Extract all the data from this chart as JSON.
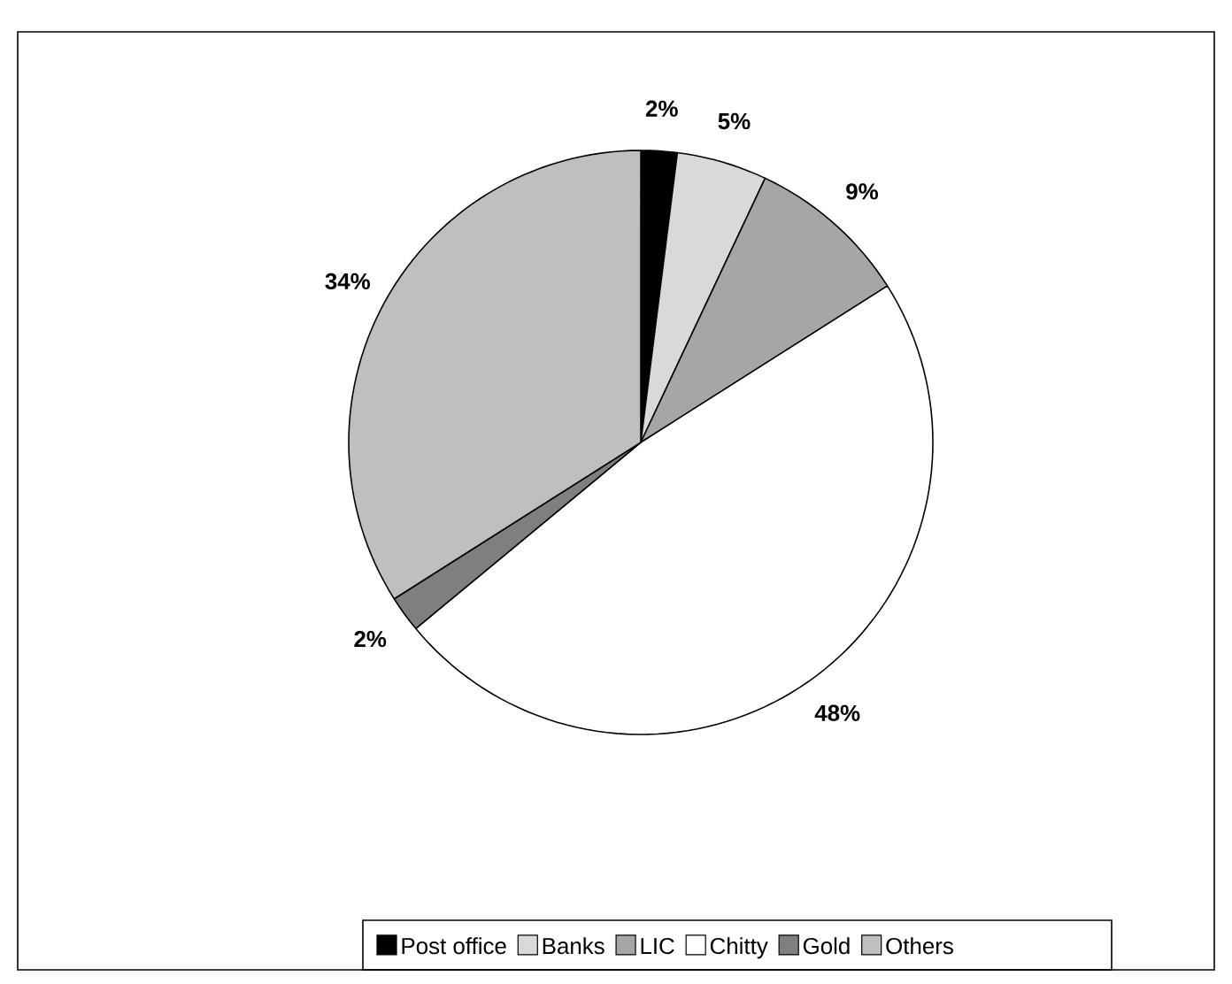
{
  "chart_data": {
    "type": "pie",
    "categories": [
      "Post office",
      "Banks",
      "LIC",
      "Chitty",
      "Gold",
      "Others"
    ],
    "values": [
      2,
      5,
      9,
      48,
      2,
      34
    ],
    "value_labels": [
      "2%",
      "5%",
      "9%",
      "48%",
      "2%",
      "34%"
    ],
    "colors": [
      "#000000",
      "#d9d9d9",
      "#a6a6a6",
      "#ffffff",
      "#7f7f7f",
      "#bfbfbf"
    ],
    "legend": "bottom"
  }
}
